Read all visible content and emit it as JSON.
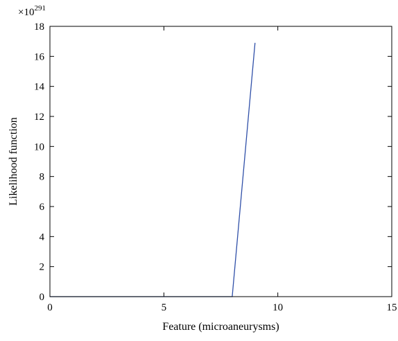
{
  "chart_data": {
    "type": "line",
    "title": "",
    "xlabel": "Feature (microaneurysms)",
    "ylabel": "Likelihood function",
    "y_scale_multiplier": {
      "base": "×10",
      "exponent": "291"
    },
    "xlim": [
      0,
      15
    ],
    "ylim": [
      0,
      18
    ],
    "xticks": [
      0,
      5,
      10,
      15
    ],
    "yticks": [
      0,
      2,
      4,
      6,
      8,
      10,
      12,
      14,
      16,
      18
    ],
    "grid": false,
    "legend": "none",
    "series": [
      {
        "color": "#2f4fa8",
        "x": [
          0,
          1,
          2,
          3,
          4,
          5,
          6,
          7,
          8,
          9
        ],
        "y": [
          0,
          0,
          0,
          0,
          0,
          0,
          0,
          0,
          0,
          16.9
        ]
      }
    ]
  }
}
